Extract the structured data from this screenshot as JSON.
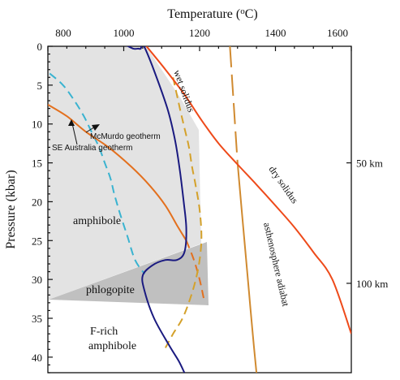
{
  "colors": {
    "amphibole_field": "#e3e3e3",
    "phlogopite_field": "#c0c0c0",
    "boundary": "#1a1a80",
    "mcmurdo_geotherm": "#3ab3d0",
    "se_australia_geotherm": "#e3701e",
    "wet_solidus": "#d4a12a",
    "asthenosphere_adiabat": "#d08a30",
    "dry_solidus": "#ee4a1a"
  },
  "axes": {
    "x_title": "Temperature (°C)",
    "y_title": "Pressure (kbar)",
    "x_ticks": [
      "800",
      "1000",
      "1200",
      "1400",
      "1600"
    ],
    "y_ticks": [
      "0",
      "5",
      "10",
      "15",
      "20",
      "25",
      "30",
      "35",
      "40"
    ],
    "depth_labels": [
      "50 km",
      "100 km"
    ]
  },
  "labels": {
    "amphibole": "amphibole",
    "phlogopite": "phlogopite",
    "f_rich_1": "F-rich",
    "f_rich_2": "amphibole",
    "mcmurdo": "McMurdo geotherm",
    "se_australia": "SE Australia geotherm",
    "wet_solidus": "wet solidus",
    "dry_solidus": "dry solidus",
    "asthenosphere": "asthenosphere adiabat"
  },
  "chart_data": {
    "type": "line",
    "xlabel": "Temperature (°C)",
    "ylabel": "Pressure (kbar)",
    "xlim": [
      800,
      1600
    ],
    "ylim": [
      42,
      0
    ],
    "secondary_y_ticks": [
      {
        "label": "50 km",
        "value": 15
      },
      {
        "label": "100 km",
        "value": 30.5
      }
    ],
    "series": [
      {
        "name": "McMurdo geotherm",
        "style": "dashed",
        "color": "#3ab3d0",
        "x": [
          805,
          840,
          870,
          895,
          915,
          935,
          950,
          965,
          975,
          990,
          1010,
          1030,
          1055
        ],
        "y": [
          3.5,
          5,
          7,
          9,
          11,
          13,
          15,
          17,
          19,
          21.5,
          24.5,
          27.5,
          29.3
        ]
      },
      {
        "name": "SE Australia geotherm",
        "style": "solid-then-dashed",
        "color": "#e3701e",
        "dash_from_x": 1165,
        "x": [
          800,
          850,
          900,
          960,
          1020,
          1070,
          1110,
          1140,
          1165,
          1185,
          1200,
          1212
        ],
        "y": [
          7.5,
          9,
          11,
          13,
          15.5,
          18,
          20.5,
          23,
          25,
          27.5,
          30,
          32.7
        ]
      },
      {
        "name": "wet solidus",
        "style": "dashed",
        "color": "#d4a12a",
        "x": [
          1130,
          1148,
          1160,
          1172,
          1180,
          1190,
          1200,
          1205,
          1200,
          1190,
          1175,
          1155,
          1130,
          1110
        ],
        "y": [
          4,
          8,
          10.5,
          13,
          15.5,
          18,
          21,
          24.5,
          27.5,
          30,
          32.5,
          35,
          37,
          38.8
        ]
      },
      {
        "name": "asthenosphere adiabat",
        "style": "long-dashed-then-solid",
        "color": "#d08a30",
        "solid_from_y": 15,
        "x": [
          1280,
          1290,
          1300,
          1310,
          1320,
          1330,
          1340,
          1350
        ],
        "y": [
          0,
          7.5,
          15,
          20.5,
          26,
          31.5,
          37,
          42
        ]
      },
      {
        "name": "dry solidus",
        "style": "solid",
        "color": "#ee4a1a",
        "x": [
          1060,
          1110,
          1160,
          1205,
          1250,
          1300,
          1350,
          1400,
          1450,
          1500,
          1550,
          1600
        ],
        "y": [
          0,
          3,
          6.2,
          9.5,
          12.5,
          15.2,
          17.8,
          20.5,
          23.3,
          26.5,
          30,
          37
        ]
      },
      {
        "name": "amphibole stability limit",
        "style": "solid",
        "color": "#1a1a80",
        "x": [
          1000,
          1025,
          1038,
          1045,
          1050,
          1075,
          1115,
          1135,
          1148,
          1158,
          1165,
          1160,
          1140,
          1110,
          1075,
          1050,
          1055,
          1080,
          1120,
          1145,
          1160
        ],
        "y": [
          -0.3,
          0.3,
          0.3,
          0.3,
          -0.3,
          2.5,
          8,
          12,
          16,
          20,
          23.5,
          26.5,
          27.5,
          27.5,
          28.2,
          29.5,
          31.5,
          35,
          38.5,
          40.5,
          42
        ]
      }
    ]
  }
}
